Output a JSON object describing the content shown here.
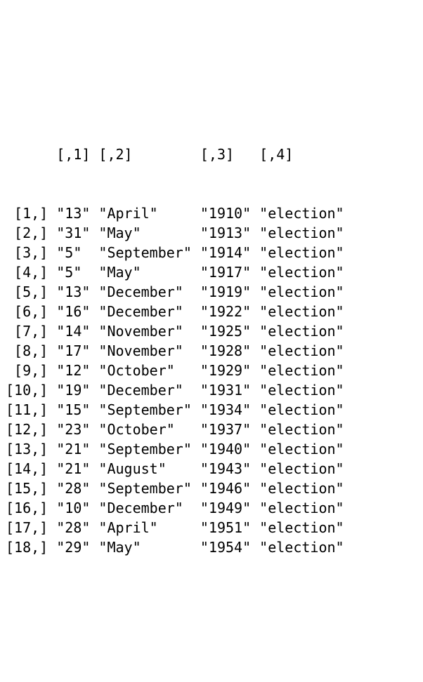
{
  "matrix": {
    "type": "table",
    "background_color": "#ffffff",
    "text_color": "#000000",
    "font_family": "monospace",
    "font_size_pt": 15,
    "quote_char": "\"",
    "col_headers": [
      "[,1]",
      "[,2]",
      "[,3]",
      "[,4]"
    ],
    "row_headers": [
      "[1,]",
      "[2,]",
      "[3,]",
      "[4,]",
      "[5,]",
      "[6,]",
      "[7,]",
      "[8,]",
      "[9,]",
      "[10,]",
      "[11,]",
      "[12,]",
      "[13,]",
      "[14,]",
      "[15,]",
      "[16,]",
      "[17,]",
      "[18,]"
    ],
    "rows": [
      [
        "13",
        "April",
        "1910",
        "election"
      ],
      [
        "31",
        "May",
        "1913",
        "election"
      ],
      [
        "5",
        "September",
        "1914",
        "election"
      ],
      [
        "5",
        "May",
        "1917",
        "election"
      ],
      [
        "13",
        "December",
        "1919",
        "election"
      ],
      [
        "16",
        "December",
        "1922",
        "election"
      ],
      [
        "14",
        "November",
        "1925",
        "election"
      ],
      [
        "17",
        "November",
        "1928",
        "election"
      ],
      [
        "12",
        "October",
        "1929",
        "election"
      ],
      [
        "19",
        "December",
        "1931",
        "election"
      ],
      [
        "15",
        "September",
        "1934",
        "election"
      ],
      [
        "23",
        "October",
        "1937",
        "election"
      ],
      [
        "21",
        "September",
        "1940",
        "election"
      ],
      [
        "21",
        "August",
        "1943",
        "election"
      ],
      [
        "28",
        "September",
        "1946",
        "election"
      ],
      [
        "10",
        "December",
        "1949",
        "election"
      ],
      [
        "28",
        "April",
        "1951",
        "election"
      ],
      [
        "29",
        "May",
        "1954",
        "election"
      ]
    ],
    "col_widths_ch": {
      "row_header": 5,
      "c1": 4,
      "c2": 11,
      "c3": 6,
      "c4": 10
    },
    "alignment": {
      "row_header": "right",
      "cells": "left"
    }
  }
}
